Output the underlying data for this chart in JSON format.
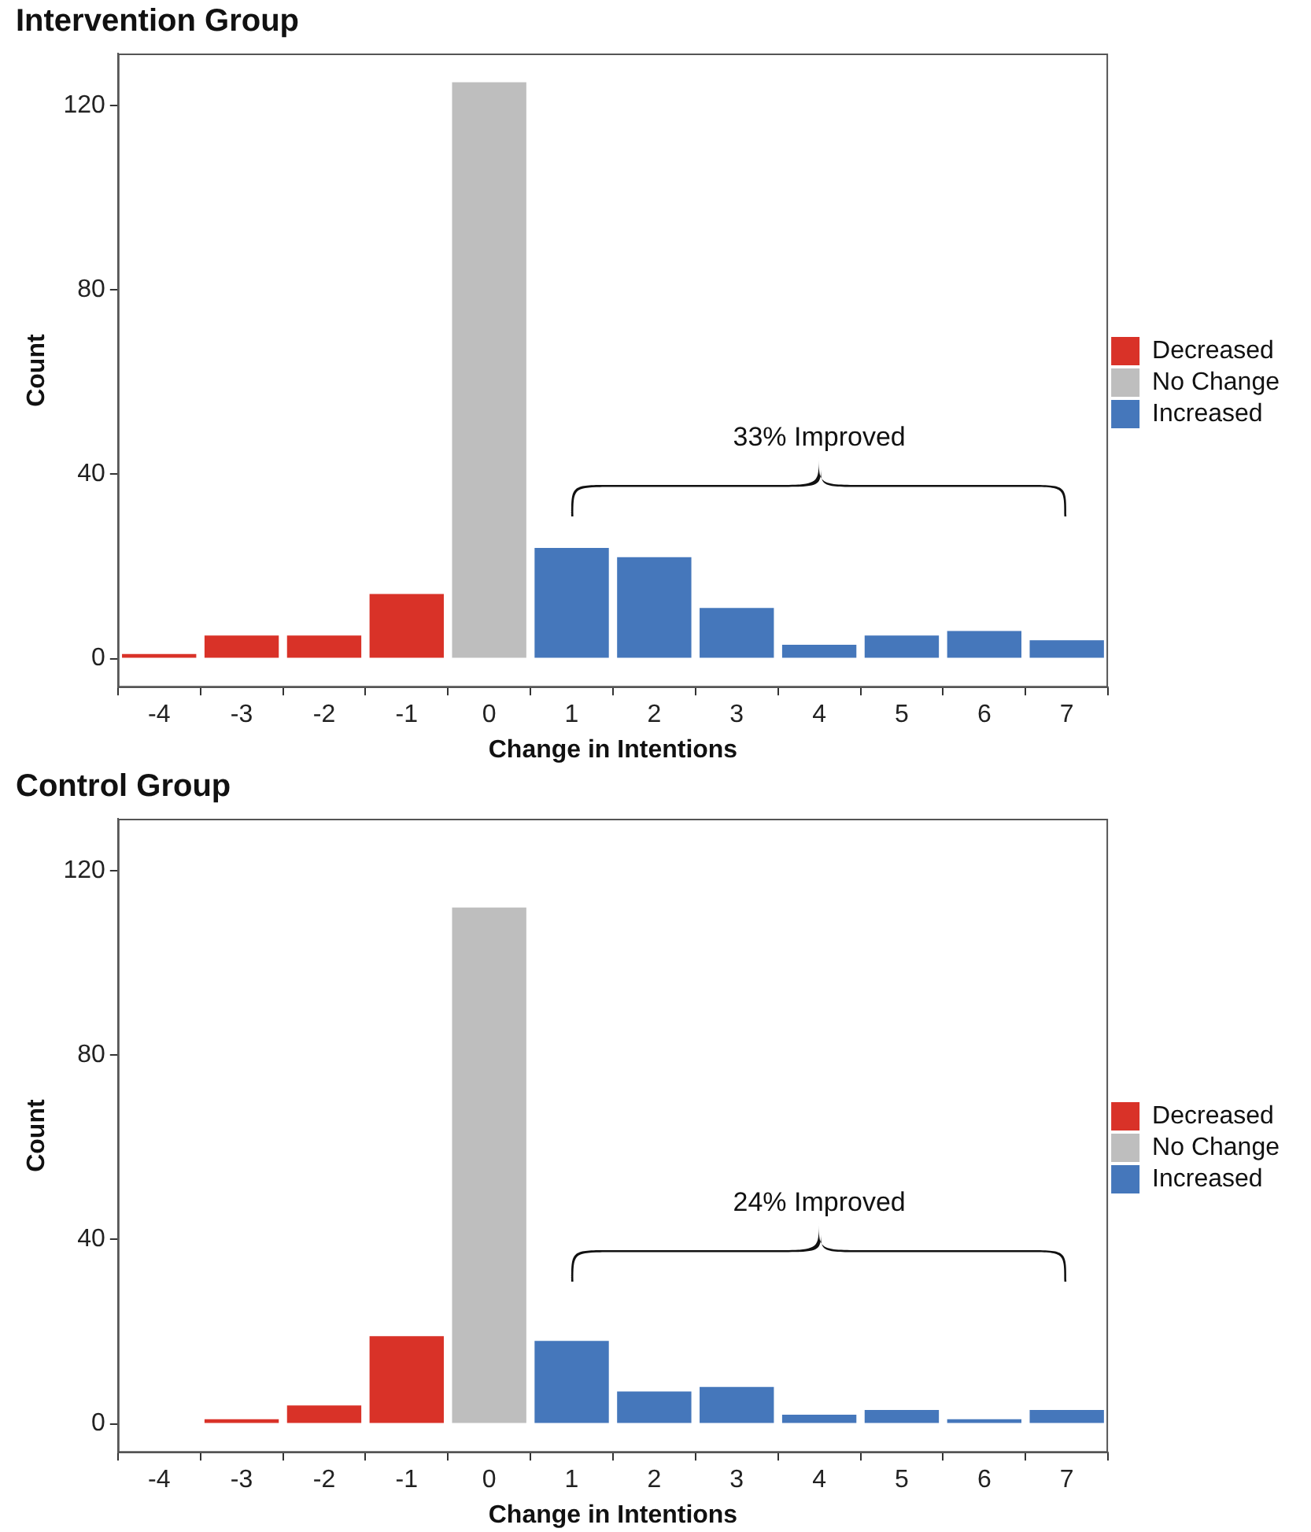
{
  "chart_data": [
    {
      "type": "bar",
      "title": "Intervention Group",
      "xlabel": "Change in Intentions",
      "ylabel": "Count",
      "categories": [
        "-4",
        "-3",
        "-2",
        "-1",
        "0",
        "1",
        "2",
        "3",
        "4",
        "5",
        "6",
        "7"
      ],
      "series": [
        {
          "name": "Decreased",
          "color": "#d93228",
          "values": [
            1,
            5,
            5,
            14,
            null,
            null,
            null,
            null,
            null,
            null,
            null,
            null
          ]
        },
        {
          "name": "No Change",
          "color": "#bebebe",
          "values": [
            null,
            null,
            null,
            null,
            125,
            null,
            null,
            null,
            null,
            null,
            null,
            null
          ]
        },
        {
          "name": "Increased",
          "color": "#4577bb",
          "values": [
            null,
            null,
            null,
            null,
            null,
            24,
            22,
            11,
            3,
            5,
            6,
            4
          ]
        }
      ],
      "ylim": [
        -6.25,
        131.25
      ],
      "yticks": [
        0,
        40,
        80,
        120
      ],
      "grid": false,
      "legend": "right",
      "annotations": [
        "33% Improved"
      ]
    },
    {
      "type": "bar",
      "title": "Control Group",
      "xlabel": "Change in Intentions",
      "ylabel": "Count",
      "categories": [
        "-4",
        "-3",
        "-2",
        "-1",
        "0",
        "1",
        "2",
        "3",
        "4",
        "5",
        "6",
        "7"
      ],
      "series": [
        {
          "name": "Decreased",
          "color": "#d93228",
          "values": [
            0,
            1,
            4,
            19,
            null,
            null,
            null,
            null,
            null,
            null,
            null,
            null
          ]
        },
        {
          "name": "No Change",
          "color": "#bebebe",
          "values": [
            null,
            null,
            null,
            null,
            112,
            null,
            null,
            null,
            null,
            null,
            null,
            null
          ]
        },
        {
          "name": "Increased",
          "color": "#4577bb",
          "values": [
            null,
            null,
            null,
            null,
            null,
            18,
            7,
            8,
            2,
            3,
            1,
            3
          ]
        }
      ],
      "ylim": [
        -6.25,
        131.25
      ],
      "yticks": [
        0,
        40,
        80,
        120
      ],
      "grid": false,
      "legend": "right",
      "annotations": [
        "24% Improved"
      ]
    }
  ]
}
